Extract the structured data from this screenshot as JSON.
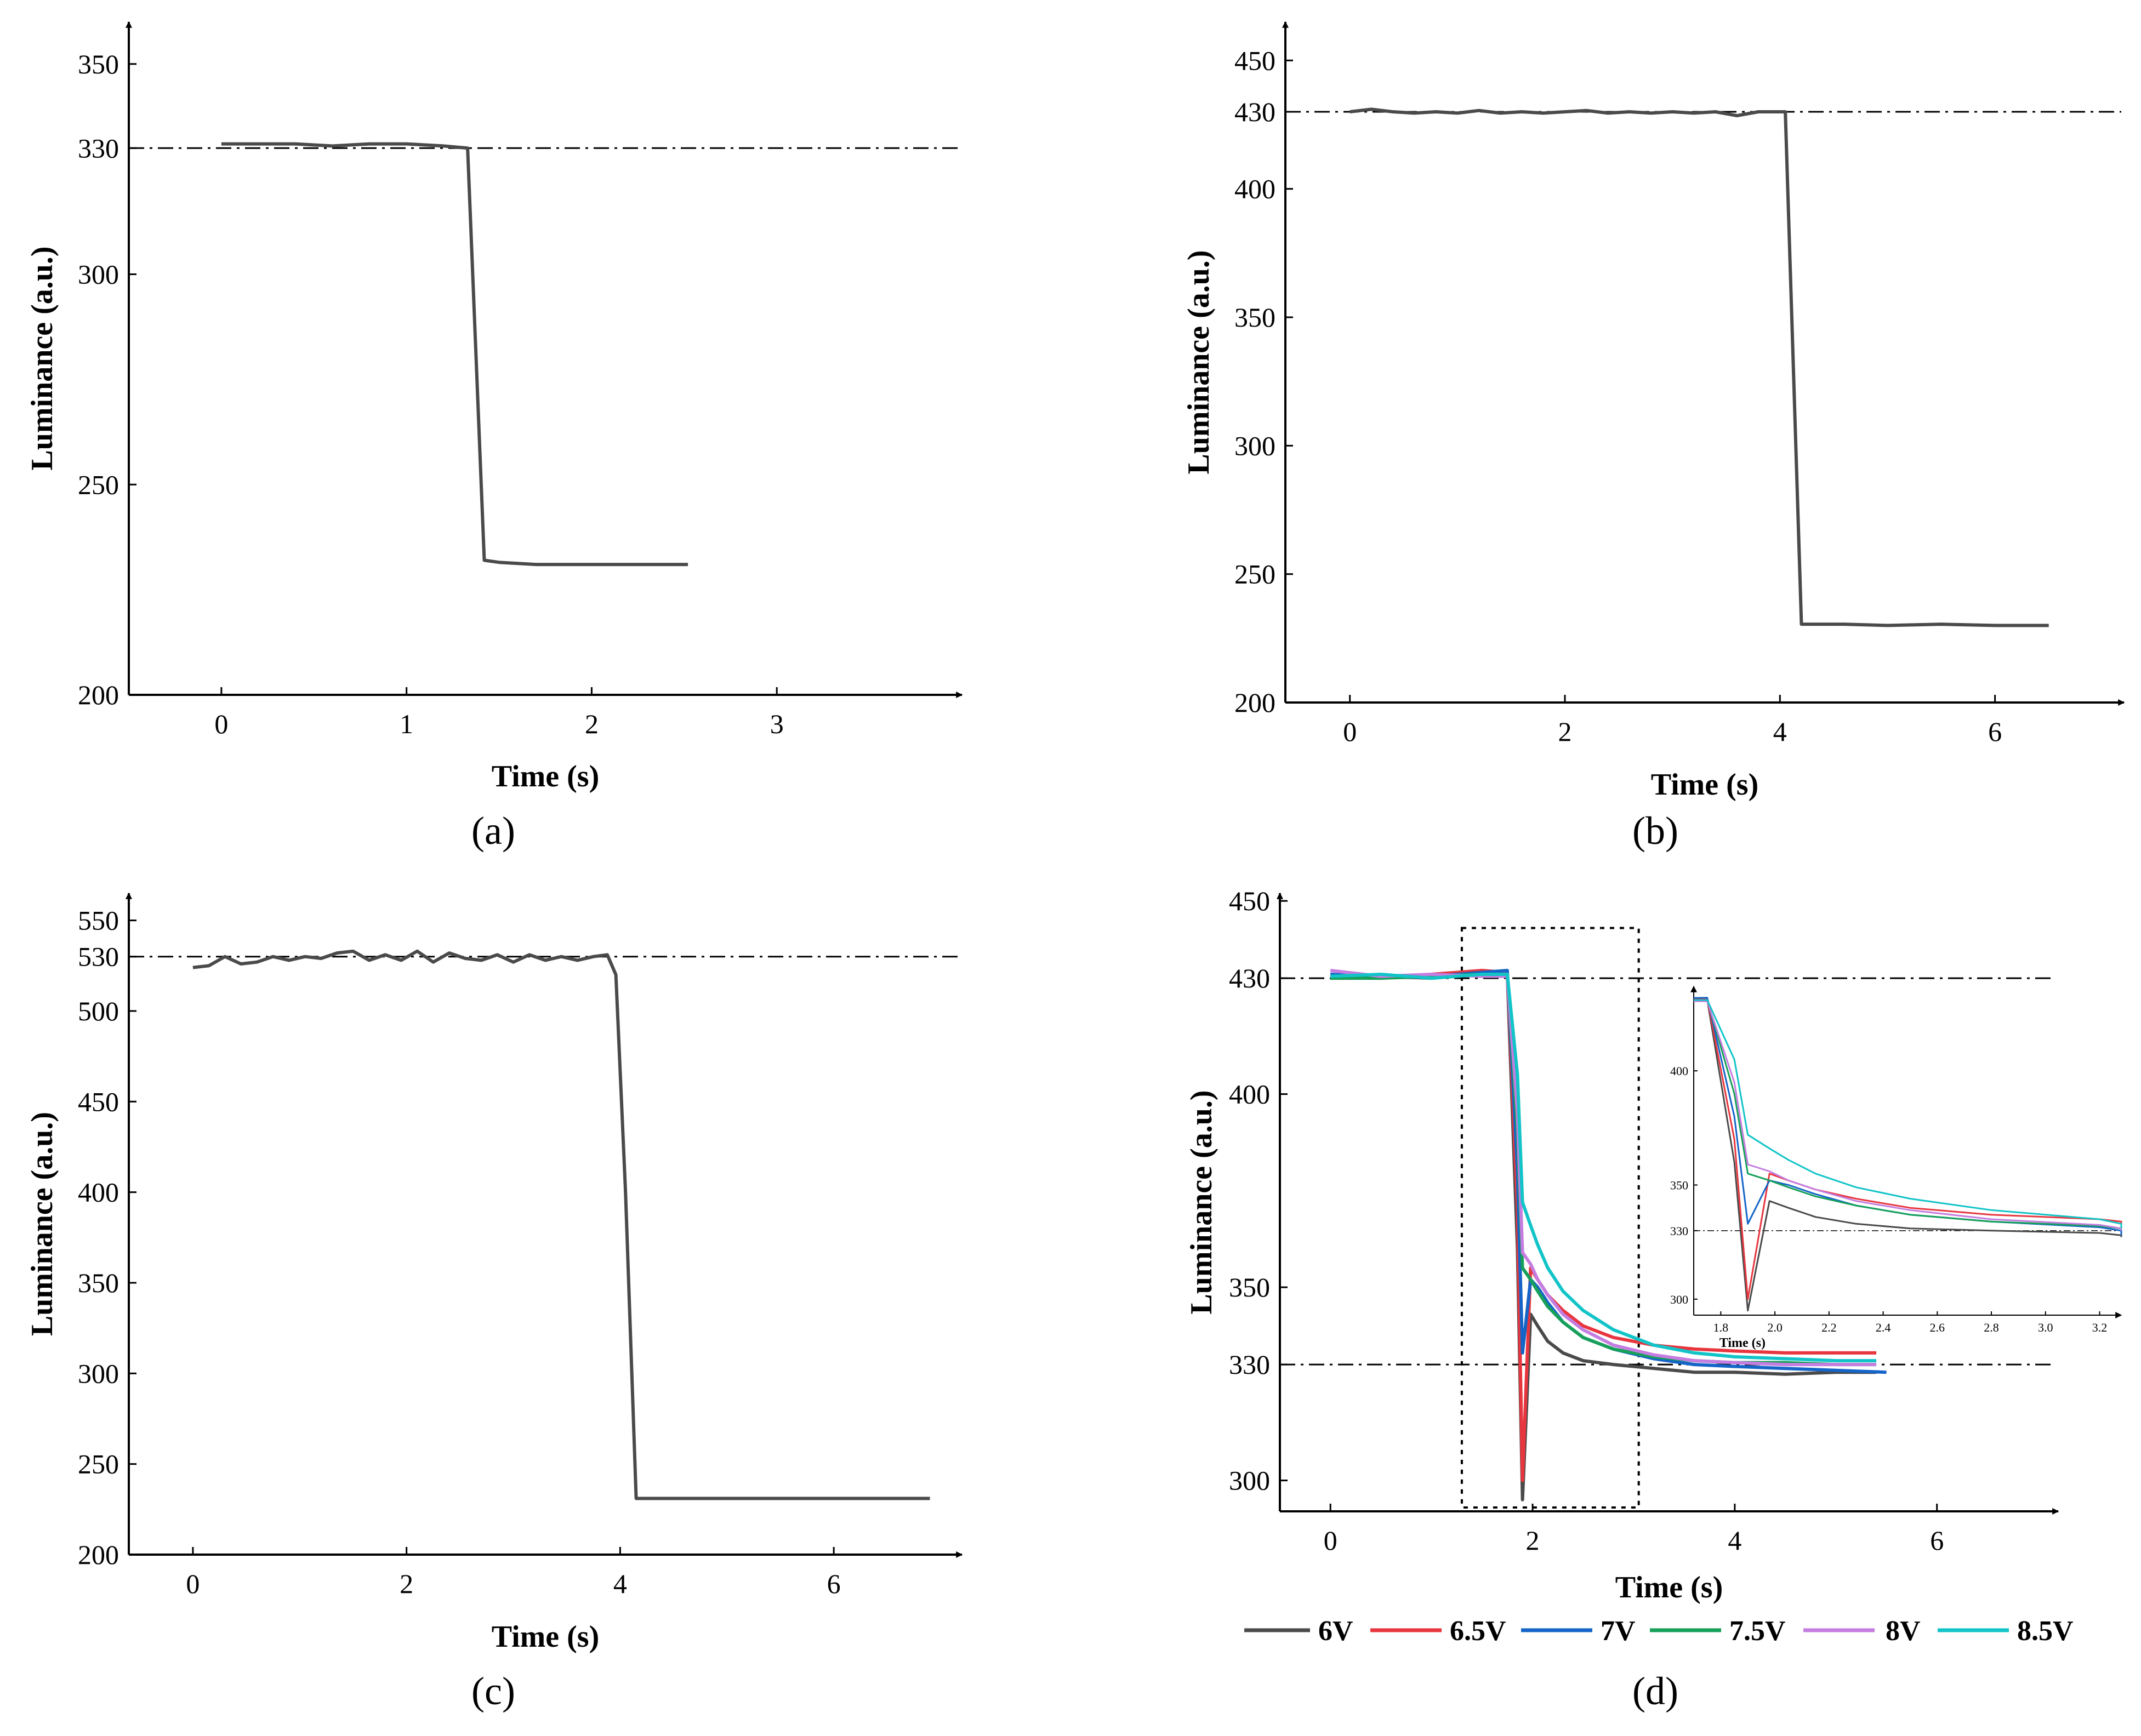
{
  "figure": {
    "panel_labels": [
      "(a)",
      "(b)",
      "(c)",
      "(d)"
    ],
    "legend": [
      {
        "label": "6V",
        "color": "#4a4a4a"
      },
      {
        "label": "6.5V",
        "color": "#e8363f"
      },
      {
        "label": "7V",
        "color": "#1565c8"
      },
      {
        "label": "7.5V",
        "color": "#16a05a"
      },
      {
        "label": "8V",
        "color": "#c47de0"
      },
      {
        "label": "8.5V",
        "color": "#12c4c8"
      }
    ]
  },
  "chart_data": [
    {
      "id": "a",
      "type": "line",
      "xlabel": "Time (s)",
      "ylabel": "Luminance (a.u.)",
      "xlim": [
        -0.5,
        4.0
      ],
      "ylim": [
        200,
        360
      ],
      "xticks": [
        0,
        1,
        2,
        3
      ],
      "yticks": [
        200,
        250,
        300,
        330,
        350
      ],
      "reference_lines": [
        330
      ],
      "series": [
        {
          "name": "luminance",
          "color": "#4a4a4a",
          "x": [
            0,
            0.2,
            0.4,
            0.6,
            0.8,
            1.0,
            1.2,
            1.33,
            1.42,
            1.5,
            1.7,
            1.9,
            2.1,
            2.3,
            2.52
          ],
          "y": [
            331,
            331,
            331,
            330.5,
            331,
            331,
            330.5,
            330,
            232,
            231.5,
            231,
            231,
            231,
            231,
            231
          ]
        }
      ]
    },
    {
      "id": "b",
      "type": "line",
      "xlabel": "Time (s)",
      "ylabel": "Luminance (a.u.)",
      "xlim": [
        -0.6,
        7.2
      ],
      "ylim": [
        200,
        465
      ],
      "xticks": [
        0,
        2,
        4,
        6
      ],
      "yticks": [
        200,
        250,
        300,
        350,
        400,
        430,
        450
      ],
      "reference_lines": [
        430
      ],
      "series": [
        {
          "name": "luminance",
          "color": "#4a4a4a",
          "x": [
            0,
            0.2,
            0.4,
            0.6,
            0.8,
            1.0,
            1.2,
            1.4,
            1.6,
            1.8,
            2.0,
            2.2,
            2.4,
            2.6,
            2.8,
            3.0,
            3.2,
            3.4,
            3.6,
            3.8,
            4.05,
            4.2,
            4.6,
            5.0,
            5.5,
            6.0,
            6.5
          ],
          "y": [
            430,
            431,
            430,
            429.5,
            430,
            429.5,
            430.5,
            429.5,
            430,
            429.5,
            430,
            430.5,
            429.5,
            430,
            429.5,
            430,
            429.5,
            430,
            428.5,
            430,
            430,
            230.5,
            230.5,
            230,
            230.5,
            230,
            230
          ]
        }
      ]
    },
    {
      "id": "c",
      "type": "line",
      "xlabel": "Time (s)",
      "ylabel": "Luminance (a.u.)",
      "xlim": [
        -0.6,
        7.2
      ],
      "ylim": [
        200,
        565
      ],
      "xticks": [
        0,
        2,
        4,
        6
      ],
      "yticks": [
        200,
        250,
        300,
        350,
        400,
        450,
        500,
        530,
        550
      ],
      "reference_lines": [
        530
      ],
      "series": [
        {
          "name": "luminance",
          "color": "#4a4a4a",
          "x": [
            0,
            0.15,
            0.3,
            0.45,
            0.6,
            0.75,
            0.9,
            1.05,
            1.2,
            1.35,
            1.5,
            1.65,
            1.8,
            1.95,
            2.1,
            2.25,
            2.4,
            2.55,
            2.7,
            2.85,
            3.0,
            3.15,
            3.3,
            3.45,
            3.6,
            3.75,
            3.88,
            3.96,
            4.05,
            4.15,
            4.5,
            5.0,
            5.5,
            6.0,
            6.5,
            6.9
          ],
          "y": [
            524,
            525,
            530,
            526,
            527,
            530,
            528,
            530,
            529,
            532,
            533,
            528,
            531,
            528,
            533,
            527,
            532,
            529,
            528,
            531,
            527,
            531,
            528,
            530,
            528,
            530,
            531,
            520,
            400,
            231,
            231,
            231,
            231,
            231,
            231,
            231
          ]
        }
      ]
    },
    {
      "id": "d",
      "type": "line",
      "xlabel": "Time (s)",
      "ylabel": "Luminance (a.u.)",
      "xlim": [
        -0.5,
        7.2
      ],
      "ylim": [
        292,
        452
      ],
      "xticks": [
        0,
        2,
        4,
        6
      ],
      "yticks": [
        300,
        330,
        350,
        400,
        430,
        450
      ],
      "reference_lines": [
        330,
        430
      ],
      "highlight_box": {
        "x": [
          1.3,
          3.05
        ],
        "y": [
          293,
          443
        ]
      },
      "series": [
        {
          "name": "6V",
          "color": "#4a4a4a",
          "x": [
            0,
            0.5,
            1.0,
            1.5,
            1.75,
            1.85,
            1.9,
            1.98,
            2.05,
            2.15,
            2.3,
            2.5,
            2.8,
            3.2,
            3.6,
            4.0,
            4.5,
            5.0,
            5.4
          ],
          "y": [
            430,
            430.5,
            430,
            431,
            431,
            360,
            295,
            343,
            340,
            336,
            333,
            331,
            330,
            329,
            328,
            328,
            327.5,
            328,
            328
          ]
        },
        {
          "name": "6.5V",
          "color": "#e8363f",
          "x": [
            0,
            0.5,
            1.0,
            1.5,
            1.75,
            1.85,
            1.9,
            1.98,
            2.05,
            2.15,
            2.3,
            2.5,
            2.8,
            3.2,
            3.6,
            4.0,
            4.5,
            5.0,
            5.4
          ],
          "y": [
            431,
            430,
            431,
            432,
            431.5,
            370,
            300,
            355,
            352,
            348,
            344,
            340,
            337,
            335,
            334,
            333.5,
            333,
            333,
            333
          ]
        },
        {
          "name": "7V",
          "color": "#1565c8",
          "x": [
            0,
            0.5,
            1.0,
            1.5,
            1.75,
            1.85,
            1.9,
            1.98,
            2.05,
            2.15,
            2.3,
            2.5,
            2.8,
            3.2,
            3.6,
            4.0,
            4.5,
            5.0,
            5.5
          ],
          "y": [
            431,
            430.5,
            430.5,
            431.5,
            432,
            380,
            333,
            352,
            350,
            346,
            341,
            337,
            334,
            331.5,
            330,
            329.5,
            329,
            328.5,
            328
          ]
        },
        {
          "name": "7.5V",
          "color": "#16a05a",
          "x": [
            0,
            0.5,
            1.0,
            1.5,
            1.75,
            1.85,
            1.9,
            1.98,
            2.05,
            2.15,
            2.3,
            2.5,
            2.8,
            3.2,
            3.6,
            4.0,
            4.5,
            5.0,
            5.4
          ],
          "y": [
            430,
            430,
            430.5,
            431,
            431,
            390,
            355,
            352,
            349,
            345,
            341,
            337,
            334,
            332,
            331,
            330.5,
            330.5,
            330,
            330
          ]
        },
        {
          "name": "8V",
          "color": "#c47de0",
          "x": [
            0,
            0.5,
            1.0,
            1.5,
            1.75,
            1.85,
            1.9,
            1.98,
            2.05,
            2.15,
            2.3,
            2.5,
            2.8,
            3.2,
            3.6,
            4.0,
            4.5,
            5.0,
            5.4
          ],
          "y": [
            432,
            430.5,
            431,
            430.5,
            430.5,
            395,
            359,
            356,
            352,
            348,
            343,
            339,
            335,
            332.5,
            331,
            330.5,
            330,
            330,
            330
          ]
        },
        {
          "name": "8.5V",
          "color": "#12c4c8",
          "x": [
            0,
            0.5,
            1.0,
            1.5,
            1.75,
            1.85,
            1.9,
            1.98,
            2.05,
            2.15,
            2.3,
            2.5,
            2.8,
            3.2,
            3.6,
            4.0,
            4.5,
            5.0,
            5.4
          ],
          "y": [
            430.5,
            431,
            430,
            431,
            431,
            405,
            372,
            366,
            361,
            355,
            349,
            344,
            339,
            335,
            333,
            332,
            331.5,
            331,
            331
          ]
        }
      ],
      "inset": {
        "xlabel": "Time (s)",
        "xlim": [
          1.7,
          3.28
        ],
        "ylim": [
          293,
          437
        ],
        "xticks": [
          1.8,
          2.0,
          2.2,
          2.4,
          2.6,
          2.8,
          3.0,
          3.2
        ],
        "xtick_labels": [
          "1.8",
          "2.0",
          "2.2",
          "2.4",
          "2.6",
          "2.8",
          "3.0",
          "3.2"
        ],
        "yticks": [
          300,
          330,
          350,
          400
        ],
        "reference_lines": [
          330
        ]
      }
    }
  ]
}
